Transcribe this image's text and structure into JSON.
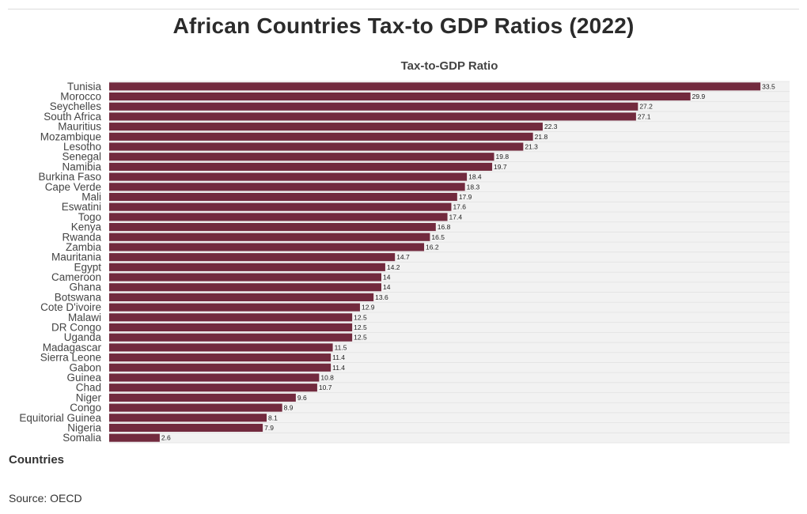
{
  "title": "African Countries Tax-to GDP Ratios (2022)",
  "source": "Source: OECD",
  "colors": {
    "bar": "#722a3e",
    "plot_bg": "#f2f2f2",
    "grid": "#e2e2e2"
  },
  "chart_data": {
    "type": "bar",
    "orientation": "horizontal",
    "title": "African Countries Tax-to GDP Ratios (2022)",
    "xlabel": "Tax-to-GDP Ratio",
    "ylabel": "Countries",
    "xlim": [
      0,
      35
    ],
    "grid": true,
    "categories": [
      "Tunisia",
      "Morocco",
      "Seychelles",
      "South Africa",
      "Mauritius",
      "Mozambique",
      "Lesotho",
      "Senegal",
      "Namibia",
      "Burkina Faso",
      "Cape Verde",
      "Mali",
      "Eswatini",
      "Togo",
      "Kenya",
      "Rwanda",
      "Zambia",
      "Mauritania",
      "Egypt",
      "Cameroon",
      "Ghana",
      "Botswana",
      "Cote D'ivoire",
      "Malawi",
      "DR Congo",
      "Uganda",
      "Madagascar",
      "Sierra Leone",
      "Gabon",
      "Guinea",
      "Chad",
      "Niger",
      "Congo",
      "Equitorial Guinea",
      "Nigeria",
      "Somalia"
    ],
    "values": [
      33.5,
      29.9,
      27.2,
      27.1,
      22.3,
      21.8,
      21.3,
      19.8,
      19.7,
      18.4,
      18.3,
      17.9,
      17.6,
      17.4,
      16.8,
      16.5,
      16.2,
      14.7,
      14.2,
      14,
      14,
      13.6,
      12.9,
      12.5,
      12.5,
      12.5,
      11.5,
      11.4,
      11.4,
      10.8,
      10.7,
      9.6,
      8.9,
      8.1,
      7.9,
      2.6
    ]
  }
}
